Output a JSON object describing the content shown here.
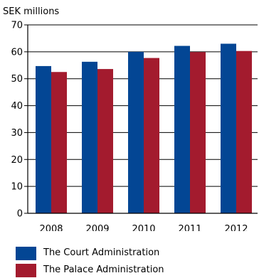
{
  "chart_data": {
    "type": "bar",
    "ylabel": "SEK millions",
    "ylim": [
      0,
      70
    ],
    "yticks": [
      0,
      10,
      20,
      30,
      40,
      50,
      60,
      70
    ],
    "grid": true,
    "categories": [
      "2008",
      "2009",
      "2010",
      "2011",
      "2012"
    ],
    "series": [
      {
        "name": "The Court Administration",
        "color": "#034694",
        "values": [
          54.7,
          56.3,
          60.0,
          62.2,
          63.0
        ]
      },
      {
        "name": "The Palace Administration",
        "color": "#a31b2e",
        "values": [
          52.5,
          53.6,
          57.7,
          59.9,
          60.3
        ]
      }
    ],
    "legend_position": "bottom-left"
  }
}
